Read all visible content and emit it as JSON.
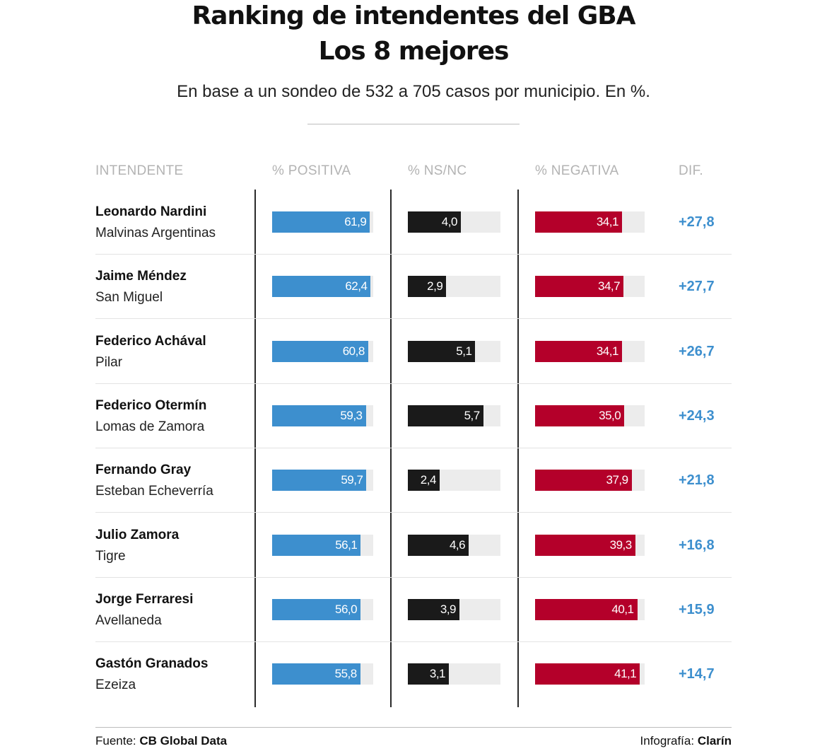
{
  "header": {
    "title_line1": "Ranking de intendentes del GBA",
    "title_line2": "Los 8 mejores",
    "subtitle": "En base a un sondeo de 532 a 705 casos por municipio. En %."
  },
  "columns": {
    "intendente": "INTENDENTE",
    "positiva": "% POSITIVA",
    "nsnc": "% NS/NC",
    "negativa": "% NEGATIVA",
    "dif": "DIF."
  },
  "colors": {
    "positiva": "#3d8fce",
    "nsnc": "#1a1a1a",
    "negativa": "#b4002a",
    "track": "#ececec",
    "dif": "#3d8fce"
  },
  "chart_data": {
    "type": "bar",
    "orientation": "horizontal",
    "categories": [
      "Leonardo Nardini",
      "Jaime Méndez",
      "Federico Achával",
      "Federico Otermín",
      "Fernando Gray",
      "Julio Zamora",
      "Jorge Ferraresi",
      "Gastón Granados"
    ],
    "series": [
      {
        "name": "% POSITIVA",
        "values": [
          61.9,
          62.4,
          60.8,
          59.3,
          59.7,
          56.1,
          56.0,
          55.8
        ]
      },
      {
        "name": "% NS/NC",
        "values": [
          4.0,
          2.9,
          5.1,
          5.7,
          2.4,
          4.6,
          3.9,
          3.1
        ]
      },
      {
        "name": "% NEGATIVA",
        "values": [
          34.1,
          34.7,
          34.1,
          35.0,
          37.9,
          39.3,
          40.1,
          41.1
        ]
      }
    ],
    "scales": {
      "positiva_max": 64.0,
      "nsnc_max": 7.0,
      "negativa_max": 43.0
    },
    "rows": [
      {
        "name": "Leonardo Nardini",
        "municipio": "Malvinas Argentinas",
        "positiva": "61,9",
        "nsnc": "4,0",
        "negativa": "34,1",
        "dif": "+27,8",
        "pos_v": 61.9,
        "ns_v": 4.0,
        "neg_v": 34.1
      },
      {
        "name": "Jaime Méndez",
        "municipio": "San Miguel",
        "positiva": "62,4",
        "nsnc": "2,9",
        "negativa": "34,7",
        "dif": "+27,7",
        "pos_v": 62.4,
        "ns_v": 2.9,
        "neg_v": 34.7
      },
      {
        "name": "Federico Achával",
        "municipio": "Pilar",
        "positiva": "60,8",
        "nsnc": "5,1",
        "negativa": "34,1",
        "dif": "+26,7",
        "pos_v": 60.8,
        "ns_v": 5.1,
        "neg_v": 34.1
      },
      {
        "name": "Federico Otermín",
        "municipio": "Lomas de Zamora",
        "positiva": "59,3",
        "nsnc": "5,7",
        "negativa": "35,0",
        "dif": "+24,3",
        "pos_v": 59.3,
        "ns_v": 5.7,
        "neg_v": 35.0
      },
      {
        "name": "Fernando Gray",
        "municipio": "Esteban Echeverría",
        "positiva": "59,7",
        "nsnc": "2,4",
        "negativa": "37,9",
        "dif": "+21,8",
        "pos_v": 59.7,
        "ns_v": 2.4,
        "neg_v": 37.9
      },
      {
        "name": "Julio Zamora",
        "municipio": "Tigre",
        "positiva": "56,1",
        "nsnc": "4,6",
        "negativa": "39,3",
        "dif": "+16,8",
        "pos_v": 56.1,
        "ns_v": 4.6,
        "neg_v": 39.3
      },
      {
        "name": "Jorge Ferraresi",
        "municipio": "Avellaneda",
        "positiva": "56,0",
        "nsnc": "3,9",
        "negativa": "40,1",
        "dif": "+15,9",
        "pos_v": 56.0,
        "ns_v": 3.9,
        "neg_v": 40.1
      },
      {
        "name": "Gastón Granados",
        "municipio": "Ezeiza",
        "positiva": "55,8",
        "nsnc": "3,1",
        "negativa": "41,1",
        "dif": "+14,7",
        "pos_v": 55.8,
        "ns_v": 3.1,
        "neg_v": 41.1
      }
    ]
  },
  "footer": {
    "source_label": "Fuente:",
    "source_value": "CB Global Data",
    "credit_label": "Infografía:",
    "credit_value": "Clarín"
  }
}
